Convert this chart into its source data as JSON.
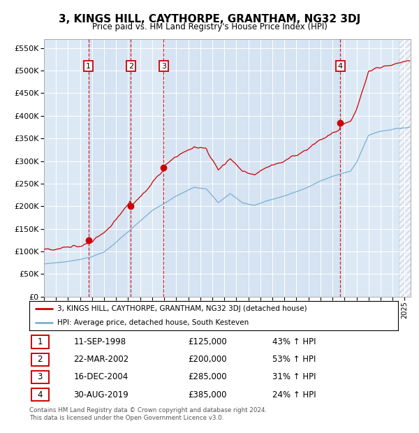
{
  "title": "3, KINGS HILL, CAYTHORPE, GRANTHAM, NG32 3DJ",
  "subtitle": "Price paid vs. HM Land Registry's House Price Index (HPI)",
  "legend_line1": "3, KINGS HILL, CAYTHORPE, GRANTHAM, NG32 3DJ (detached house)",
  "legend_line2": "HPI: Average price, detached house, South Kesteven",
  "footer1": "Contains HM Land Registry data © Crown copyright and database right 2024.",
  "footer2": "This data is licensed under the Open Government Licence v3.0.",
  "transactions": [
    {
      "num": 1,
      "date": "11-SEP-1998",
      "price": 125000,
      "pct": "43%",
      "dir": "↑"
    },
    {
      "num": 2,
      "date": "22-MAR-2002",
      "price": 200000,
      "pct": "53%",
      "dir": "↑"
    },
    {
      "num": 3,
      "date": "16-DEC-2004",
      "price": 285000,
      "pct": "31%",
      "dir": "↑"
    },
    {
      "num": 4,
      "date": "30-AUG-2019",
      "price": 385000,
      "pct": "24%",
      "dir": "↑"
    }
  ],
  "transaction_dates_decimal": [
    1998.69,
    2002.22,
    2004.96,
    2019.66
  ],
  "ylim": [
    0,
    570000
  ],
  "yticks": [
    0,
    50000,
    100000,
    150000,
    200000,
    250000,
    300000,
    350000,
    400000,
    450000,
    500000,
    550000
  ],
  "xlim_start": 1995.0,
  "xlim_end": 2025.5,
  "red_color": "#cc0000",
  "blue_color": "#7bafd4",
  "bg_color": "#dce9f5",
  "alt_bg_color": "#c8d9ed",
  "white_color": "#ffffff",
  "grid_color": "#ffffff",
  "hatch_start": 2024.5
}
